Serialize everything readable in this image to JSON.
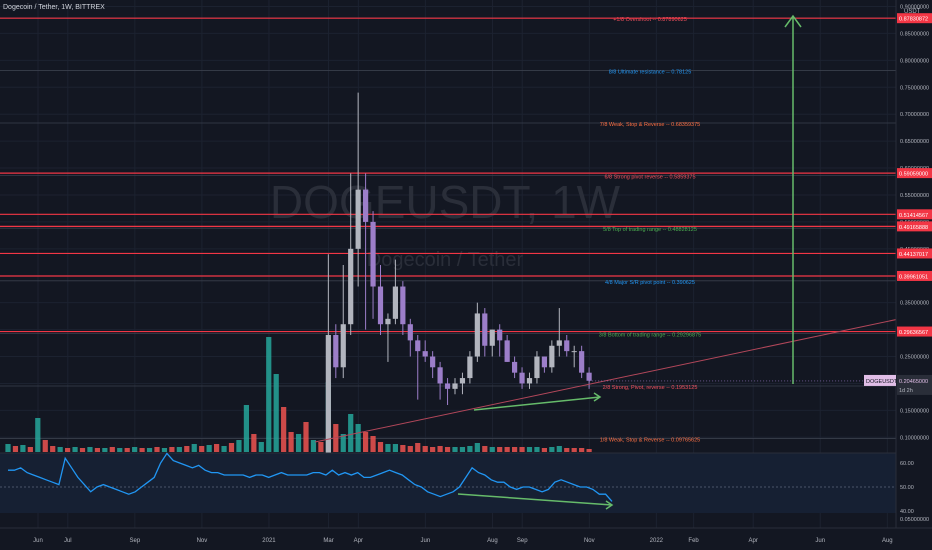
{
  "header": {
    "title": "Dogecoin / Tether, 1W, BITTREX"
  },
  "watermark": {
    "symbol": "DOGEUSDT, 1W",
    "name": "Dogecoin / Tether"
  },
  "price_axis": {
    "unit": "USDT",
    "ticks": [
      "0.90000000",
      "0.85000000",
      "0.80000000",
      "0.75000000",
      "0.70000000",
      "0.65000000",
      "0.60000000",
      "0.55000000",
      "0.50000000",
      "0.45000000",
      "0.40000000",
      "0.35000000",
      "0.30000000",
      "0.25000000",
      "0.20000000",
      "0.15000000",
      "0.10000000"
    ],
    "tick_values": [
      0.9,
      0.85,
      0.8,
      0.75,
      0.7,
      0.65,
      0.6,
      0.55,
      0.5,
      0.45,
      0.4,
      0.35,
      0.3,
      0.25,
      0.2,
      0.15,
      0.1
    ],
    "last_price_label": "DOGEUSDT",
    "last_price": "0.20465000",
    "last_price_value": 0.20465,
    "countdown": "1d 2h",
    "level_tags": [
      {
        "text": "0.87830872",
        "value": 0.8783,
        "color": "#f23645"
      },
      {
        "text": "0.59059000",
        "value": 0.5906,
        "color": "#f23645"
      },
      {
        "text": "0.51414567",
        "value": 0.5141,
        "color": "#f23645"
      },
      {
        "text": "0.49165888",
        "value": 0.4917,
        "color": "#f23645"
      },
      {
        "text": "0.44137017",
        "value": 0.4414,
        "color": "#f23645"
      },
      {
        "text": "0.39961051",
        "value": 0.3996,
        "color": "#f23645"
      },
      {
        "text": "0.29636567",
        "value": 0.2964,
        "color": "#f23645"
      }
    ]
  },
  "rsi_axis": {
    "ticks": [
      "60.00",
      "50.00",
      "40.00"
    ],
    "tick_values": [
      60,
      50,
      40
    ],
    "bottom_label": "0.05000000"
  },
  "time_axis": {
    "labels": [
      {
        "text": "Jun",
        "week": 0
      },
      {
        "text": "Jul",
        "week": 4
      },
      {
        "text": "Sep",
        "week": 13
      },
      {
        "text": "Nov",
        "week": 22
      },
      {
        "text": "2021",
        "week": 31
      },
      {
        "text": "Mar",
        "week": 39
      },
      {
        "text": "Apr",
        "week": 43
      },
      {
        "text": "Jun",
        "week": 52
      },
      {
        "text": "Aug",
        "week": 61
      },
      {
        "text": "Sep",
        "week": 65
      },
      {
        "text": "Nov",
        "week": 74
      },
      {
        "text": "2022",
        "week": 83
      },
      {
        "text": "Feb",
        "week": 88
      },
      {
        "text": "Apr",
        "week": 96
      },
      {
        "text": "Jun",
        "week": 105
      },
      {
        "text": "Aug",
        "week": 114
      }
    ]
  },
  "murrey_levels": [
    {
      "label": "+1/8 Overshoot -- 0.87890625",
      "value": 0.87890625,
      "color": "#f7525f"
    },
    {
      "label": "8/8 Ultimate resistance -- 0.78125",
      "value": 0.78125,
      "color": "#2196f3"
    },
    {
      "label": "7/8 Weak, Stop & Reverse -- 0.68359375",
      "value": 0.68359375,
      "color": "#ff7043"
    },
    {
      "label": "6/8 Strong pivot reverse -- 0.5859375",
      "value": 0.5859375,
      "color": "#f7525f"
    },
    {
      "label": "5/8 Top of trading range -- 0.48828125",
      "value": 0.48828125,
      "color": "#4caf50"
    },
    {
      "label": "4/8 Major S/R pivot point -- 0.390625",
      "value": 0.390625,
      "color": "#2196f3"
    },
    {
      "label": "3/8 Bottom of trading range -- 0.29296875",
      "value": 0.29296875,
      "color": "#4caf50"
    },
    {
      "label": "2/8 Strong, Pivot, reverse -- 0.1953125",
      "value": 0.1953125,
      "color": "#f7525f"
    },
    {
      "label": "1/8 Weak, Stop & Reverse -- 0.09765625",
      "value": 0.09765625,
      "color": "#ff7043"
    }
  ],
  "colors": {
    "background": "#131722",
    "up": "#b2b5be",
    "down": "#9c7ec9",
    "vol_up": "#26a69a",
    "vol_down": "#ef5350",
    "level": "#f23645",
    "rsi": "#2196f3",
    "arrow": "#66bb6a",
    "trendline": "#b2475a"
  },
  "chart_data": {
    "type": "candlestick",
    "title": "Dogecoin / Tether, 1W, BITTREX",
    "candles": [
      {
        "week": 43,
        "o": 0.06,
        "h": 0.44,
        "l": 0.055,
        "c": 0.29
      },
      {
        "week": 44,
        "o": 0.29,
        "h": 0.31,
        "l": 0.21,
        "c": 0.23
      },
      {
        "week": 45,
        "o": 0.23,
        "h": 0.42,
        "l": 0.21,
        "c": 0.31
      },
      {
        "week": 46,
        "o": 0.31,
        "h": 0.59,
        "l": 0.29,
        "c": 0.45
      },
      {
        "week": 47,
        "o": 0.45,
        "h": 0.74,
        "l": 0.38,
        "c": 0.56
      },
      {
        "week": 48,
        "o": 0.56,
        "h": 0.59,
        "l": 0.3,
        "c": 0.5
      },
      {
        "week": 49,
        "o": 0.5,
        "h": 0.52,
        "l": 0.32,
        "c": 0.38
      },
      {
        "week": 50,
        "o": 0.38,
        "h": 0.42,
        "l": 0.29,
        "c": 0.31
      },
      {
        "week": 51,
        "o": 0.31,
        "h": 0.33,
        "l": 0.24,
        "c": 0.32
      },
      {
        "week": 52,
        "o": 0.32,
        "h": 0.43,
        "l": 0.31,
        "c": 0.38
      },
      {
        "week": 53,
        "o": 0.38,
        "h": 0.39,
        "l": 0.29,
        "c": 0.31
      },
      {
        "week": 54,
        "o": 0.31,
        "h": 0.32,
        "l": 0.25,
        "c": 0.28
      },
      {
        "week": 55,
        "o": 0.28,
        "h": 0.29,
        "l": 0.17,
        "c": 0.26
      },
      {
        "week": 56,
        "o": 0.26,
        "h": 0.28,
        "l": 0.24,
        "c": 0.25
      },
      {
        "week": 57,
        "o": 0.25,
        "h": 0.26,
        "l": 0.21,
        "c": 0.23
      },
      {
        "week": 58,
        "o": 0.23,
        "h": 0.24,
        "l": 0.17,
        "c": 0.2
      },
      {
        "week": 59,
        "o": 0.2,
        "h": 0.21,
        "l": 0.16,
        "c": 0.19
      },
      {
        "week": 60,
        "o": 0.19,
        "h": 0.21,
        "l": 0.18,
        "c": 0.2
      },
      {
        "week": 61,
        "o": 0.2,
        "h": 0.22,
        "l": 0.18,
        "c": 0.21
      },
      {
        "week": 62,
        "o": 0.21,
        "h": 0.26,
        "l": 0.2,
        "c": 0.25
      },
      {
        "week": 63,
        "o": 0.25,
        "h": 0.35,
        "l": 0.24,
        "c": 0.33
      },
      {
        "week": 64,
        "o": 0.33,
        "h": 0.34,
        "l": 0.25,
        "c": 0.27
      },
      {
        "week": 65,
        "o": 0.27,
        "h": 0.3,
        "l": 0.25,
        "c": 0.3
      },
      {
        "week": 66,
        "o": 0.3,
        "h": 0.31,
        "l": 0.25,
        "c": 0.28
      },
      {
        "week": 67,
        "o": 0.28,
        "h": 0.29,
        "l": 0.24,
        "c": 0.24
      },
      {
        "week": 68,
        "o": 0.24,
        "h": 0.25,
        "l": 0.21,
        "c": 0.22
      },
      {
        "week": 69,
        "o": 0.22,
        "h": 0.23,
        "l": 0.19,
        "c": 0.2
      },
      {
        "week": 70,
        "o": 0.2,
        "h": 0.22,
        "l": 0.19,
        "c": 0.21
      },
      {
        "week": 71,
        "o": 0.21,
        "h": 0.26,
        "l": 0.2,
        "c": 0.25
      },
      {
        "week": 72,
        "o": 0.25,
        "h": 0.25,
        "l": 0.22,
        "c": 0.23
      },
      {
        "week": 73,
        "o": 0.23,
        "h": 0.28,
        "l": 0.22,
        "c": 0.27
      },
      {
        "week": 74,
        "o": 0.27,
        "h": 0.34,
        "l": 0.25,
        "c": 0.28
      },
      {
        "week": 75,
        "o": 0.28,
        "h": 0.29,
        "l": 0.25,
        "c": 0.26
      },
      {
        "week": 76,
        "o": 0.26,
        "h": 0.27,
        "l": 0.23,
        "c": 0.26
      },
      {
        "week": 77,
        "o": 0.26,
        "h": 0.27,
        "l": 0.21,
        "c": 0.22
      },
      {
        "week": 78,
        "o": 0.22,
        "h": 0.23,
        "l": 0.19,
        "c": 0.205
      }
    ],
    "volume": [
      {
        "week": 0,
        "v": 8,
        "up": true
      },
      {
        "week": 1,
        "v": 6,
        "up": false
      },
      {
        "week": 2,
        "v": 7,
        "up": true
      },
      {
        "week": 3,
        "v": 5,
        "up": false
      },
      {
        "week": 4,
        "v": 34,
        "up": true
      },
      {
        "week": 5,
        "v": 12,
        "up": false
      },
      {
        "week": 6,
        "v": 6,
        "up": false
      },
      {
        "week": 7,
        "v": 5,
        "up": true
      },
      {
        "week": 8,
        "v": 4,
        "up": false
      },
      {
        "week": 9,
        "v": 5,
        "up": true
      },
      {
        "week": 10,
        "v": 4,
        "up": false
      },
      {
        "week": 11,
        "v": 5,
        "up": true
      },
      {
        "week": 12,
        "v": 4,
        "up": false
      },
      {
        "week": 13,
        "v": 4,
        "up": true
      },
      {
        "week": 14,
        "v": 5,
        "up": false
      },
      {
        "week": 15,
        "v": 4,
        "up": true
      },
      {
        "week": 16,
        "v": 4,
        "up": false
      },
      {
        "week": 17,
        "v": 5,
        "up": true
      },
      {
        "week": 18,
        "v": 4,
        "up": false
      },
      {
        "week": 19,
        "v": 4,
        "up": true
      },
      {
        "week": 20,
        "v": 5,
        "up": false
      },
      {
        "week": 21,
        "v": 4,
        "up": true
      },
      {
        "week": 22,
        "v": 5,
        "up": false
      },
      {
        "week": 23,
        "v": 5,
        "up": true
      },
      {
        "week": 24,
        "v": 6,
        "up": false
      },
      {
        "week": 25,
        "v": 8,
        "up": true
      },
      {
        "week": 26,
        "v": 6,
        "up": false
      },
      {
        "week": 27,
        "v": 7,
        "up": true
      },
      {
        "week": 28,
        "v": 8,
        "up": false
      },
      {
        "week": 29,
        "v": 6,
        "up": true
      },
      {
        "week": 30,
        "v": 9,
        "up": false
      },
      {
        "week": 31,
        "v": 12,
        "up": true
      },
      {
        "week": 32,
        "v": 47,
        "up": true
      },
      {
        "week": 33,
        "v": 18,
        "up": false
      },
      {
        "week": 34,
        "v": 10,
        "up": true
      },
      {
        "week": 35,
        "v": 115,
        "up": true
      },
      {
        "week": 36,
        "v": 78,
        "up": true
      },
      {
        "week": 37,
        "v": 45,
        "up": false
      },
      {
        "week": 38,
        "v": 20,
        "up": false
      },
      {
        "week": 39,
        "v": 18,
        "up": true
      },
      {
        "week": 40,
        "v": 30,
        "up": false
      },
      {
        "week": 41,
        "v": 12,
        "up": true
      },
      {
        "week": 42,
        "v": 10,
        "up": false
      },
      {
        "week": 43,
        "v": 70,
        "up": true
      },
      {
        "week": 44,
        "v": 28,
        "up": false
      },
      {
        "week": 45,
        "v": 18,
        "up": true
      },
      {
        "week": 46,
        "v": 38,
        "up": true
      },
      {
        "week": 47,
        "v": 28,
        "up": true
      },
      {
        "week": 48,
        "v": 20,
        "up": false
      },
      {
        "week": 49,
        "v": 16,
        "up": false
      },
      {
        "week": 50,
        "v": 10,
        "up": false
      },
      {
        "week": 51,
        "v": 8,
        "up": true
      },
      {
        "week": 52,
        "v": 8,
        "up": true
      },
      {
        "week": 53,
        "v": 7,
        "up": false
      },
      {
        "week": 54,
        "v": 6,
        "up": false
      },
      {
        "week": 55,
        "v": 9,
        "up": false
      },
      {
        "week": 56,
        "v": 6,
        "up": false
      },
      {
        "week": 57,
        "v": 5,
        "up": false
      },
      {
        "week": 58,
        "v": 6,
        "up": false
      },
      {
        "week": 59,
        "v": 5,
        "up": false
      },
      {
        "week": 60,
        "v": 5,
        "up": true
      },
      {
        "week": 61,
        "v": 5,
        "up": true
      },
      {
        "week": 62,
        "v": 6,
        "up": true
      },
      {
        "week": 63,
        "v": 9,
        "up": true
      },
      {
        "week": 64,
        "v": 6,
        "up": false
      },
      {
        "week": 65,
        "v": 5,
        "up": true
      },
      {
        "week": 66,
        "v": 5,
        "up": false
      },
      {
        "week": 67,
        "v": 5,
        "up": false
      },
      {
        "week": 68,
        "v": 5,
        "up": false
      },
      {
        "week": 69,
        "v": 5,
        "up": false
      },
      {
        "week": 70,
        "v": 5,
        "up": true
      },
      {
        "week": 71,
        "v": 5,
        "up": true
      },
      {
        "week": 72,
        "v": 4,
        "up": false
      },
      {
        "week": 73,
        "v": 5,
        "up": true
      },
      {
        "week": 74,
        "v": 6,
        "up": true
      },
      {
        "week": 75,
        "v": 4,
        "up": false
      },
      {
        "week": 76,
        "v": 4,
        "up": false
      },
      {
        "week": 77,
        "v": 4,
        "up": false
      },
      {
        "week": 78,
        "v": 3,
        "up": false
      }
    ],
    "rsi": [
      57,
      57,
      58,
      56,
      55,
      54,
      53,
      52,
      51,
      62,
      58,
      54,
      51,
      48,
      50,
      51,
      50,
      49,
      48,
      47,
      48,
      50,
      52,
      54,
      60,
      64,
      61,
      60,
      59,
      58,
      59,
      57,
      56,
      56,
      55,
      55,
      55,
      55,
      54,
      55,
      55,
      54,
      55,
      56,
      55,
      55,
      55,
      55,
      56,
      56,
      55,
      57,
      55,
      56,
      55,
      56,
      54,
      54,
      55,
      56,
      57,
      56,
      55,
      53,
      51,
      50,
      48,
      47,
      46,
      47,
      48,
      50,
      54,
      58,
      56,
      55,
      53,
      52,
      52,
      50,
      49,
      50,
      50,
      49,
      48,
      49,
      52,
      53,
      52,
      51,
      50,
      50,
      49,
      47,
      47,
      44
    ]
  }
}
